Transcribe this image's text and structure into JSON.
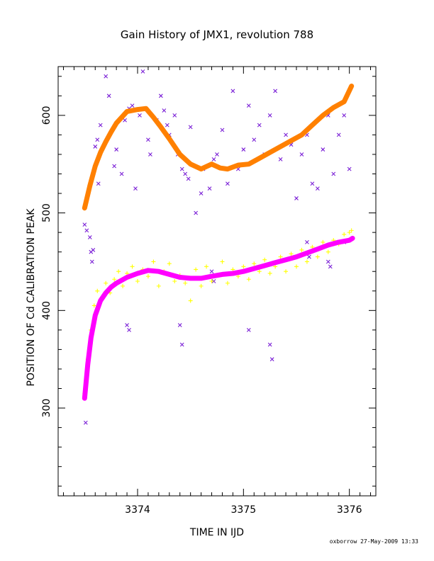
{
  "chart_data": {
    "type": "scatter",
    "title": "Gain History of JMX1, revolution 788",
    "xlabel": "TIME IN IJD",
    "ylabel": "POSITION OF Cd CALIBRATION PEAK",
    "xlim": [
      3373.25,
      3376.25
    ],
    "ylim": [
      210,
      650
    ],
    "xticks": [
      3374,
      3375,
      3376
    ],
    "yticks": [
      300,
      400,
      500,
      600
    ],
    "grid": false,
    "series": [
      {
        "marker": "fit-line",
        "color": "#ff8000",
        "x": [
          3373.5,
          3373.55,
          3373.6,
          3373.65,
          3373.7,
          3373.75,
          3373.8,
          3373.9,
          3374.0,
          3374.08,
          3374.15,
          3374.22,
          3374.3,
          3374.4,
          3374.5,
          3374.6,
          3374.7,
          3374.78,
          3374.85,
          3374.95,
          3375.05,
          3375.15,
          3375.25,
          3375.35,
          3375.45,
          3375.55,
          3375.65,
          3375.75,
          3375.85,
          3375.95,
          3376.02
        ],
        "y": [
          505,
          528,
          548,
          562,
          573,
          583,
          592,
          604,
          606,
          607,
          598,
          588,
          576,
          560,
          550,
          545,
          550,
          546,
          545,
          549,
          550,
          556,
          562,
          568,
          574,
          580,
          590,
          600,
          608,
          614,
          630
        ]
      },
      {
        "marker": "fit-line",
        "color": "#ff00ff",
        "x": [
          3373.5,
          3373.53,
          3373.56,
          3373.6,
          3373.65,
          3373.7,
          3373.75,
          3373.8,
          3373.9,
          3374.0,
          3374.1,
          3374.2,
          3374.3,
          3374.4,
          3374.5,
          3374.6,
          3374.7,
          3374.8,
          3374.9,
          3375.0,
          3375.1,
          3375.2,
          3375.3,
          3375.4,
          3375.5,
          3375.6,
          3375.7,
          3375.8,
          3375.9,
          3376.0,
          3376.03
        ],
        "y": [
          310,
          345,
          372,
          395,
          410,
          418,
          424,
          428,
          434,
          438,
          441,
          440,
          437,
          434,
          433,
          433,
          435,
          437,
          438,
          440,
          443,
          446,
          449,
          452,
          455,
          459,
          463,
          467,
          470,
          472,
          474
        ]
      },
      {
        "marker": "x",
        "color": "#7a1fd6",
        "x": [
          3373.5,
          3373.52,
          3373.55,
          3373.58,
          3373.6,
          3373.62,
          3373.65,
          3373.7,
          3373.73,
          3373.78,
          3373.8,
          3373.85,
          3373.88,
          3373.92,
          3373.95,
          3373.98,
          3374.02,
          3374.05,
          3374.1,
          3374.12,
          3374.18,
          3374.22,
          3374.25,
          3374.28,
          3374.3,
          3374.35,
          3374.38,
          3374.42,
          3374.45,
          3374.48,
          3374.5,
          3374.55,
          3374.6,
          3374.62,
          3374.68,
          3374.72,
          3374.75,
          3374.8,
          3374.85,
          3374.9,
          3374.95,
          3375.0,
          3375.05,
          3375.1,
          3375.15,
          3375.2,
          3375.25,
          3375.3,
          3375.35,
          3375.4,
          3375.45,
          3375.5,
          3375.55,
          3375.6,
          3375.65,
          3375.7,
          3375.75,
          3375.8,
          3375.85,
          3375.9,
          3375.95,
          3376.0,
          3373.51,
          3373.56,
          3373.57,
          3373.63,
          3373.9,
          3373.92,
          3374.4,
          3374.42,
          3374.7,
          3374.72,
          3375.05,
          3375.25,
          3375.27,
          3375.6,
          3375.62,
          3375.8,
          3375.82,
          3375.95
        ],
        "y": [
          488,
          482,
          475,
          462,
          568,
          575,
          590,
          640,
          620,
          548,
          565,
          540,
          595,
          607,
          610,
          525,
          600,
          645,
          575,
          560,
          595,
          620,
          605,
          590,
          580,
          600,
          560,
          545,
          540,
          535,
          588,
          500,
          520,
          545,
          525,
          555,
          560,
          585,
          530,
          625,
          545,
          565,
          610,
          575,
          590,
          560,
          600,
          625,
          555,
          580,
          570,
          515,
          560,
          580,
          530,
          525,
          565,
          600,
          540,
          580,
          600,
          545,
          285,
          460,
          450,
          530,
          385,
          380,
          385,
          365,
          440,
          430,
          380,
          365,
          350,
          470,
          455,
          450,
          445,
          470
        ]
      },
      {
        "marker": "plus",
        "color": "#ffff00",
        "x": [
          3373.5,
          3373.53,
          3373.56,
          3373.59,
          3373.62,
          3373.66,
          3373.7,
          3373.74,
          3373.78,
          3373.82,
          3373.86,
          3373.9,
          3373.95,
          3374.0,
          3374.05,
          3374.1,
          3374.15,
          3374.2,
          3374.25,
          3374.3,
          3374.35,
          3374.4,
          3374.45,
          3374.5,
          3374.55,
          3374.6,
          3374.65,
          3374.7,
          3374.75,
          3374.8,
          3374.85,
          3374.9,
          3374.95,
          3375.0,
          3375.05,
          3375.1,
          3375.15,
          3375.2,
          3375.25,
          3375.3,
          3375.35,
          3375.4,
          3375.45,
          3375.5,
          3375.55,
          3375.6,
          3375.65,
          3375.7,
          3375.75,
          3375.8,
          3375.85,
          3375.9,
          3375.95,
          3376.0,
          3376.02
        ],
        "y": [
          315,
          350,
          380,
          405,
          420,
          412,
          428,
          418,
          432,
          440,
          425,
          438,
          445,
          430,
          442,
          435,
          450,
          425,
          440,
          448,
          430,
          436,
          428,
          410,
          442,
          425,
          445,
          430,
          436,
          450,
          428,
          442,
          435,
          445,
          432,
          448,
          440,
          452,
          438,
          445,
          455,
          440,
          458,
          445,
          462,
          450,
          465,
          455,
          470,
          460,
          472,
          468,
          478,
          480,
          482
        ]
      }
    ]
  },
  "footer": {
    "credit": "oxborrow 27-May-2009 13:33"
  }
}
